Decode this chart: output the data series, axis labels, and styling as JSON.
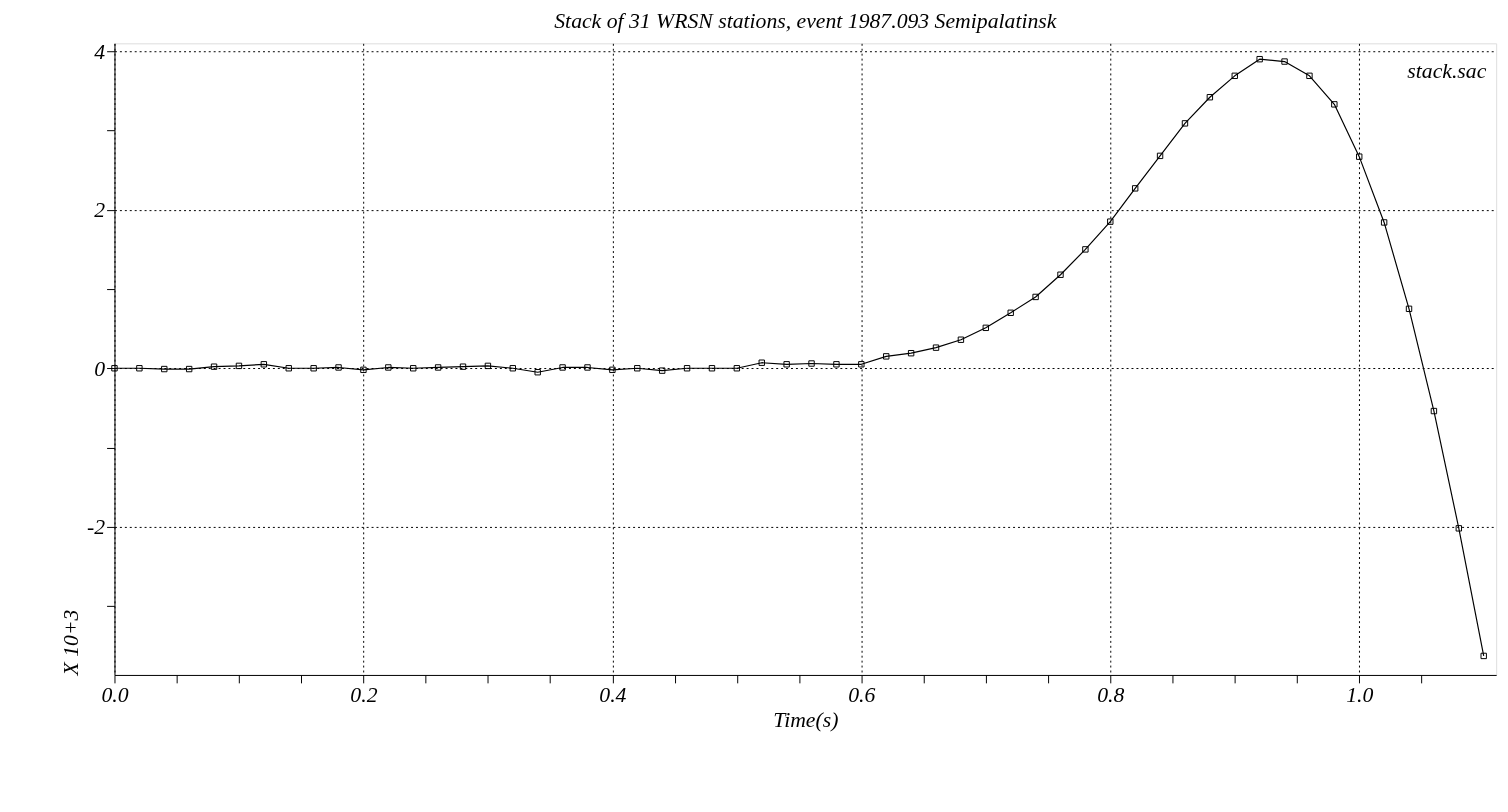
{
  "chart_data": {
    "type": "line",
    "title": "Stack of 31 WRSN stations, event 1987.093 Semipalatinsk",
    "xlabel": "Time(s)",
    "ylabel": "X 10+3",
    "annotations": [
      "stack.sac"
    ],
    "x": [
      0,
      0.02,
      0.04,
      0.06,
      0.08,
      0.1,
      0.12,
      0.14,
      0.16,
      0.18,
      0.2,
      0.22,
      0.24,
      0.26,
      0.28,
      0.3,
      0.32,
      0.34,
      0.36,
      0.38,
      0.4,
      0.42,
      0.44,
      0.46,
      0.48,
      0.5,
      0.52,
      0.54,
      0.56,
      0.58,
      0.6,
      0.62,
      0.64,
      0.66,
      0.68,
      0.7,
      0.72,
      0.74,
      0.76,
      0.78,
      0.8,
      0.82,
      0.84,
      0.86,
      0.88,
      0.9,
      0.92,
      0.94,
      0.96,
      0.98,
      1.0,
      1.02,
      1.04,
      1.06,
      1.08,
      1.1
    ],
    "series": [
      {
        "color": "#000000",
        "values": [
          0,
          0,
          -0.01,
          -0.01,
          0.02,
          0.03,
          0.05,
          0,
          0,
          0.01,
          -0.02,
          0.01,
          0,
          0.01,
          0.02,
          0.03,
          0,
          -0.05,
          0.01,
          0.01,
          -0.02,
          0,
          -0.03,
          0,
          0,
          0,
          0.07,
          0.05,
          0.06,
          0.05,
          0.05,
          0.15,
          0.19,
          0.26,
          0.36,
          0.51,
          0.7,
          0.9,
          1.18,
          1.5,
          1.85,
          2.27,
          2.68,
          3.09,
          3.42,
          3.69,
          3.9,
          3.87,
          3.69,
          3.33,
          2.67,
          1.84,
          0.75,
          -0.54,
          -2.02,
          -3.63
        ]
      }
    ],
    "xlim": [
      0,
      1.11
    ],
    "ylim": [
      -3.87,
      4.1
    ],
    "xticks": [
      {
        "value": 0,
        "label": "0.0"
      },
      {
        "value": 0.05,
        "label": null
      },
      {
        "value": 0.1,
        "label": null
      },
      {
        "value": 0.15,
        "label": null
      },
      {
        "value": 0.2,
        "label": "0.2"
      },
      {
        "value": 0.25,
        "label": null
      },
      {
        "value": 0.3,
        "label": null
      },
      {
        "value": 0.35,
        "label": null
      },
      {
        "value": 0.4,
        "label": "0.4"
      },
      {
        "value": 0.45,
        "label": null
      },
      {
        "value": 0.5,
        "label": null
      },
      {
        "value": 0.55,
        "label": null
      },
      {
        "value": 0.6,
        "label": "0.6"
      },
      {
        "value": 0.65,
        "label": null
      },
      {
        "value": 0.7,
        "label": null
      },
      {
        "value": 0.75,
        "label": null
      },
      {
        "value": 0.8,
        "label": "0.8"
      },
      {
        "value": 0.85,
        "label": null
      },
      {
        "value": 0.9,
        "label": null
      },
      {
        "value": 0.95,
        "label": null
      },
      {
        "value": 1.0,
        "label": "1.0"
      },
      {
        "value": 1.05,
        "label": null
      }
    ],
    "yticks": [
      {
        "value": -3,
        "label": null
      },
      -2,
      {
        "value": -1,
        "label": null
      },
      0,
      {
        "value": 1,
        "label": null
      },
      2,
      {
        "value": 3,
        "label": null
      },
      4
    ],
    "grid": true,
    "marker": "square",
    "line_style": "solid"
  }
}
